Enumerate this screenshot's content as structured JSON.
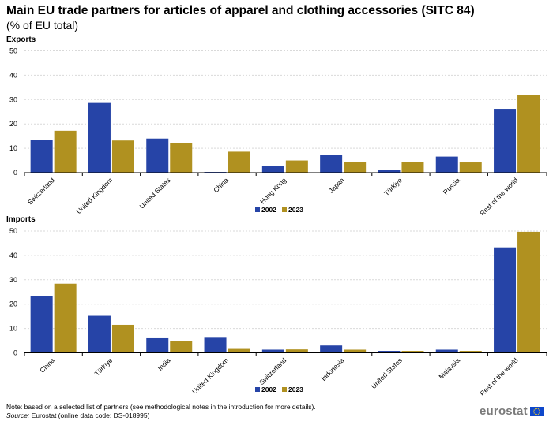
{
  "title": "Main EU trade partners for articles of apparel and clothing accessories (SITC 84)",
  "subtitle": "(% of EU total)",
  "colors": {
    "2002": "#2644a7",
    "2023": "#b09120",
    "grid": "#d9d9d9",
    "axis": "#000000"
  },
  "chart_data": [
    {
      "type": "bar",
      "panel_title": "Exports",
      "categories": [
        "Switzerland",
        "United Kingdom",
        "United States",
        "China",
        "Hong Kong",
        "Japan",
        "Türkiye",
        "Russia",
        "Rest of the world"
      ],
      "series": [
        {
          "name": "2002",
          "values": [
            13.4,
            28.6,
            14.0,
            0.3,
            2.7,
            7.4,
            1.0,
            6.6,
            26.2
          ]
        },
        {
          "name": "2023",
          "values": [
            17.2,
            13.2,
            12.1,
            8.6,
            5.0,
            4.5,
            4.3,
            4.2,
            31.9
          ]
        }
      ],
      "yticks": [
        0,
        10,
        20,
        30,
        40,
        50
      ],
      "ylim": [
        0,
        50
      ],
      "grid": true,
      "legend": "bottom-center"
    },
    {
      "type": "bar",
      "panel_title": "Imports",
      "categories": [
        "China",
        "Türkiye",
        "India",
        "United Kingdom",
        "Switzerland",
        "Indonesia",
        "United States",
        "Malaysia",
        "Rest of the world"
      ],
      "series": [
        {
          "name": "2002",
          "values": [
            23.4,
            15.2,
            6.0,
            6.2,
            1.3,
            3.0,
            0.8,
            1.3,
            43.3
          ]
        },
        {
          "name": "2023",
          "values": [
            28.4,
            11.5,
            5.0,
            1.6,
            1.4,
            1.3,
            0.8,
            0.8,
            49.7
          ]
        }
      ],
      "yticks": [
        0,
        10,
        20,
        30,
        40,
        50
      ],
      "ylim": [
        0,
        50
      ],
      "grid": true,
      "legend": "bottom-center"
    }
  ],
  "footer": {
    "note": "Note: based on a selected list of partners (see methodological notes in the introduction for more details).",
    "source_label": "Source:",
    "source_text": " Eurostat (online data code: DS-018995)"
  },
  "logo": {
    "text": "eurostat",
    "icon": "eu-flag-icon"
  }
}
